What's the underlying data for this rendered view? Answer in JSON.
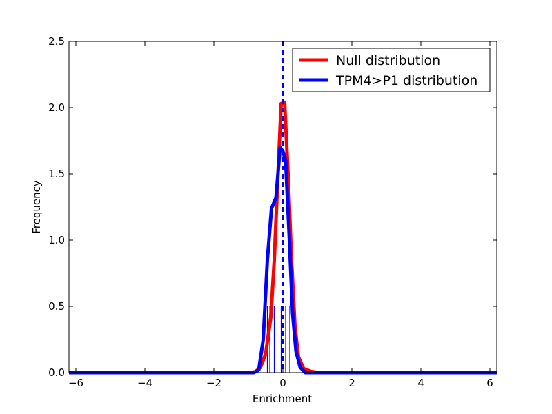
{
  "chart_data": {
    "type": "line",
    "title": "",
    "xlabel": "Enrichment",
    "ylabel": "Frequency",
    "xlim": [
      -6.2,
      6.2
    ],
    "ylim": [
      0,
      2.5
    ],
    "xticks": [
      -6,
      -4,
      -2,
      0,
      2,
      4,
      6
    ],
    "xtick_labels": [
      "−6",
      "−4",
      "−2",
      "0",
      "2",
      "4",
      "6"
    ],
    "yticks": [
      0,
      0.5,
      1.0,
      1.5,
      2.0,
      2.5
    ],
    "ytick_labels": [
      "0.0",
      "0.5",
      "1.0",
      "1.5",
      "2.0",
      "2.5"
    ],
    "grid": false,
    "legend_position": "top-right",
    "series": [
      {
        "name": "Null distribution",
        "color": "#ff0000",
        "x": [
          -6.2,
          -1.0,
          -0.8,
          -0.65,
          -0.5,
          -0.35,
          -0.25,
          -0.15,
          -0.05,
          0.05,
          0.15,
          0.25,
          0.35,
          0.45,
          0.6,
          0.8,
          1.0,
          6.2
        ],
        "y": [
          0.0,
          0.0,
          0.005,
          0.04,
          0.14,
          0.42,
          0.85,
          1.45,
          2.03,
          2.04,
          1.5,
          0.85,
          0.35,
          0.12,
          0.03,
          0.01,
          0.0,
          0.0
        ]
      },
      {
        "name": "TPM4>P1 distribution",
        "color": "#0000ff",
        "x": [
          -6.2,
          -0.85,
          -0.7,
          -0.57,
          -0.45,
          -0.33,
          -0.2,
          -0.08,
          0.0,
          0.08,
          0.18,
          0.28,
          0.38,
          0.5,
          0.65,
          6.2
        ],
        "y": [
          0.0,
          0.0,
          0.02,
          0.25,
          0.85,
          1.24,
          1.32,
          1.7,
          1.67,
          1.6,
          1.05,
          0.45,
          0.16,
          0.04,
          0.0,
          0.0
        ]
      }
    ],
    "reference_line": {
      "x": 0.0,
      "style": "dashed",
      "color": "#0000ff"
    },
    "rug_marks": {
      "color": "#0000ff",
      "height": 0.5,
      "x": [
        -0.45,
        -0.38,
        -0.25,
        -0.05,
        0.08,
        0.2
      ]
    }
  }
}
